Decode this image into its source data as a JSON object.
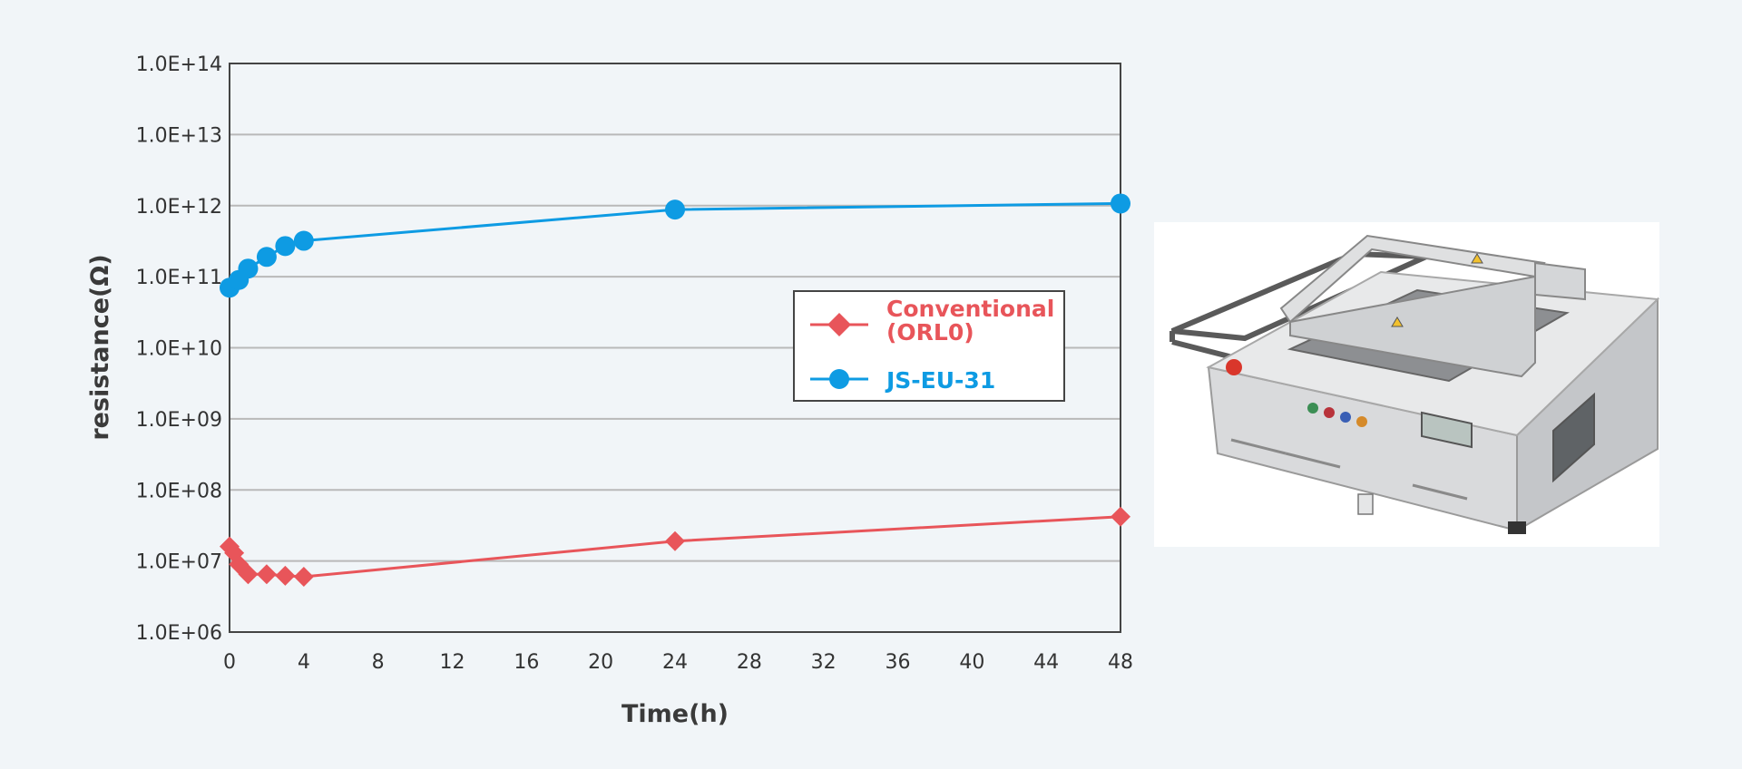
{
  "chart_data": {
    "type": "line",
    "title": "",
    "xlabel": "Time(h)",
    "ylabel": "resistance(Ω)",
    "x_scale": "linear",
    "y_scale": "log",
    "xlim": [
      0,
      48
    ],
    "ylim": [
      1000000,
      100000000000000
    ],
    "x_ticks": [
      "0",
      "4",
      "8",
      "12",
      "16",
      "20",
      "24",
      "28",
      "32",
      "36",
      "40",
      "44",
      "48"
    ],
    "y_ticks": [
      "1.0E+06",
      "1.0E+07",
      "1.0E+08",
      "1.0E+09",
      "1.0E+10",
      "1.0E+11",
      "1.0E+12",
      "1.0E+13",
      "1.0E+14"
    ],
    "grid": "horizontal",
    "legend_position": "center-right",
    "series": [
      {
        "name": "Conventional (ORL0)",
        "legend_lines": [
          "Conventional",
          "(ORL0)"
        ],
        "color": "#e8555a",
        "marker": "diamond",
        "x": [
          0,
          0.25,
          0.5,
          1,
          2,
          3,
          4,
          24,
          48
        ],
        "y": [
          16000000,
          13000000,
          9000000,
          6500000,
          6500000,
          6200000,
          6000000,
          19000000,
          42000000
        ]
      },
      {
        "name": "JS-EU-31",
        "legend_lines": [
          "JS-EU-31"
        ],
        "color": "#0e9be3",
        "marker": "circle",
        "x": [
          0,
          0.5,
          1,
          2,
          3,
          4,
          24,
          48
        ],
        "y": [
          70000000000,
          90000000000,
          130000000000,
          190000000000,
          270000000000,
          320000000000,
          880000000000,
          1070000000000
        ]
      }
    ]
  },
  "photo": {
    "subject": "benchtop machine with metal frame and control panel"
  }
}
